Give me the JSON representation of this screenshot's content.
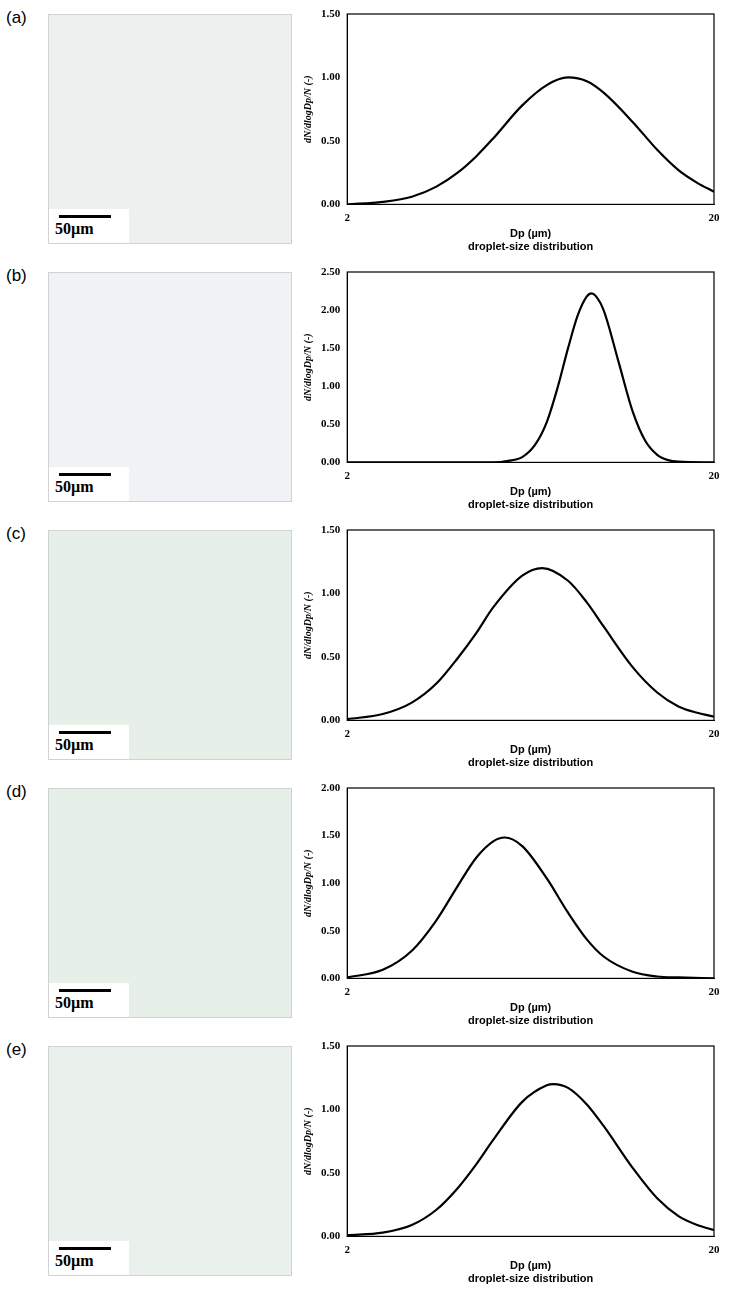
{
  "chart_data": [
    {
      "panel": "(a)",
      "type": "line",
      "xlabel": "Dp (µm)",
      "caption": "droplet-size distribution",
      "ylabel": "dN/dlogDp/N (-)",
      "log": "x",
      "grid": false,
      "color": "#000000",
      "micrograph_scale_bar": "50µm",
      "x": [
        2,
        2.5,
        3,
        3.5,
        4,
        4.5,
        5,
        6,
        7,
        8,
        9,
        10,
        12,
        14,
        16,
        18,
        20
      ],
      "values": [
        0.0,
        0.02,
        0.06,
        0.14,
        0.25,
        0.38,
        0.52,
        0.78,
        0.94,
        1.0,
        0.97,
        0.88,
        0.65,
        0.43,
        0.27,
        0.17,
        0.1
      ],
      "xlim": [
        2,
        20
      ],
      "xticks": [
        2,
        20
      ],
      "ylim": [
        0,
        1.5
      ],
      "yticks": [
        {
          "value": 0,
          "label": "0.00"
        },
        {
          "value": 0.5,
          "label": "0.50"
        },
        {
          "value": 1,
          "label": "1.00"
        },
        {
          "value": 1.5,
          "label": "1.50"
        }
      ]
    },
    {
      "panel": "(b)",
      "type": "line",
      "xlabel": "Dp (µm)",
      "caption": "droplet-size distribution",
      "ylabel": "dN/dlogDp/N (-)",
      "log": "x",
      "grid": false,
      "color": "#000000",
      "micrograph_scale_bar": "50µm",
      "x": [
        2,
        4,
        5,
        5.5,
        6,
        6.5,
        7,
        7.5,
        8,
        8.5,
        9,
        9.27,
        9.5,
        10,
        11,
        12,
        13,
        14,
        15,
        16,
        20
      ],
      "values": [
        0,
        0,
        0,
        0.02,
        0.07,
        0.23,
        0.53,
        0.99,
        1.5,
        1.93,
        2.18,
        2.22,
        2.19,
        2.0,
        1.31,
        0.67,
        0.28,
        0.1,
        0.03,
        0.01,
        0
      ],
      "xlim": [
        2,
        20
      ],
      "xticks": [
        2,
        20
      ],
      "ylim": [
        0,
        2.5
      ],
      "yticks": [
        {
          "value": 0,
          "label": "0.00"
        },
        {
          "value": 0.5,
          "label": "0.50"
        },
        {
          "value": 1,
          "label": "1.00"
        },
        {
          "value": 1.5,
          "label": "1.50"
        },
        {
          "value": 2,
          "label": "2.00"
        },
        {
          "value": 2.5,
          "label": "2.50"
        }
      ]
    },
    {
      "panel": "(c)",
      "type": "line",
      "xlabel": "Dp (µm)",
      "caption": "droplet-size distribution",
      "ylabel": "dN/dlogDp/N (-)",
      "log": "x",
      "grid": false,
      "color": "#000000",
      "micrograph_scale_bar": "50µm",
      "x": [
        2,
        2.5,
        3,
        3.5,
        4,
        4.5,
        5,
        6,
        6.8,
        8,
        9,
        10,
        12,
        14,
        16,
        18,
        20
      ],
      "values": [
        0.01,
        0.05,
        0.14,
        0.29,
        0.49,
        0.69,
        0.89,
        1.14,
        1.2,
        1.1,
        0.93,
        0.74,
        0.42,
        0.22,
        0.11,
        0.06,
        0.03
      ],
      "xlim": [
        2,
        20
      ],
      "xticks": [
        2,
        20
      ],
      "ylim": [
        0,
        1.5
      ],
      "yticks": [
        {
          "value": 0,
          "label": "0.00"
        },
        {
          "value": 0.5,
          "label": "0.50"
        },
        {
          "value": 1,
          "label": "1.00"
        },
        {
          "value": 1.5,
          "label": "1.50"
        }
      ]
    },
    {
      "panel": "(d)",
      "type": "line",
      "xlabel": "Dp (µm)",
      "caption": "droplet-size distribution",
      "ylabel": "dN/dlogDp/N (-)",
      "log": "x",
      "grid": false,
      "color": "#000000",
      "micrograph_scale_bar": "50µm",
      "x": [
        2,
        2.5,
        3,
        3.5,
        4,
        4.5,
        5,
        5.37,
        6,
        7,
        8,
        9,
        10,
        12,
        14,
        16,
        20
      ],
      "values": [
        0.01,
        0.09,
        0.29,
        0.61,
        0.97,
        1.27,
        1.44,
        1.48,
        1.39,
        1.05,
        0.69,
        0.41,
        0.23,
        0.07,
        0.02,
        0.01,
        0
      ],
      "xlim": [
        2,
        20
      ],
      "xticks": [
        2,
        20
      ],
      "ylim": [
        0,
        2
      ],
      "yticks": [
        {
          "value": 0,
          "label": "0.00"
        },
        {
          "value": 0.5,
          "label": "0.50"
        },
        {
          "value": 1,
          "label": "1.00"
        },
        {
          "value": 1.5,
          "label": "1.50"
        },
        {
          "value": 2,
          "label": "2.00"
        }
      ]
    },
    {
      "panel": "(e)",
      "type": "line",
      "xlabel": "Dp (µm)",
      "caption": "droplet-size distribution",
      "ylabel": "dN/dlogDp/N (-)",
      "log": "x",
      "grid": false,
      "color": "#000000",
      "micrograph_scale_bar": "50µm",
      "x": [
        2,
        2.5,
        3,
        3.5,
        4,
        4.5,
        5,
        6,
        7,
        7.3,
        8,
        9,
        10,
        12,
        14,
        16,
        18,
        20
      ],
      "values": [
        0.01,
        0.03,
        0.09,
        0.21,
        0.38,
        0.57,
        0.76,
        1.06,
        1.19,
        1.2,
        1.17,
        1.04,
        0.87,
        0.54,
        0.3,
        0.16,
        0.09,
        0.05
      ],
      "xlim": [
        2,
        20
      ],
      "xticks": [
        2,
        20
      ],
      "ylim": [
        0,
        1.5
      ],
      "yticks": [
        {
          "value": 0,
          "label": "0.00"
        },
        {
          "value": 0.5,
          "label": "0.50"
        },
        {
          "value": 1,
          "label": "1.00"
        },
        {
          "value": 1.5,
          "label": "1.50"
        }
      ]
    }
  ]
}
